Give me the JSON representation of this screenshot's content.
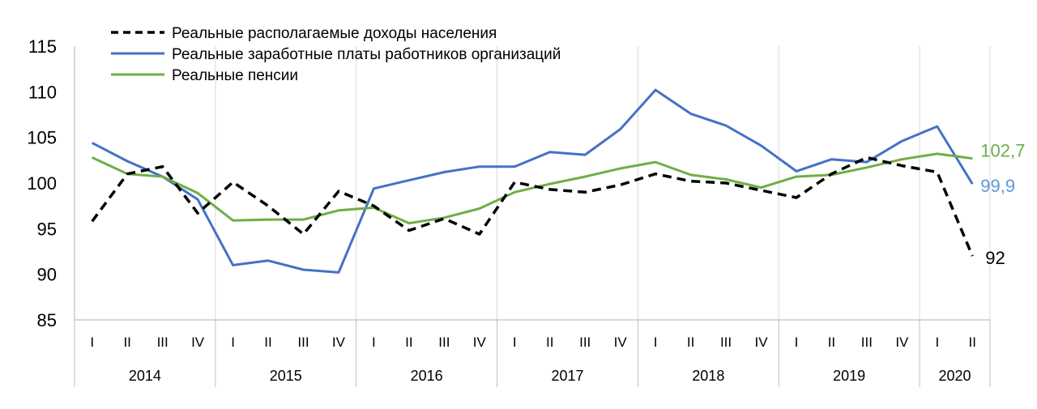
{
  "chart_data": {
    "type": "line",
    "title": "",
    "xlabel": "",
    "ylabel": "",
    "ylim": [
      85,
      115
    ],
    "yticks": [
      85,
      90,
      95,
      100,
      105,
      110,
      115
    ],
    "grid": "vertical",
    "legend_position": "top-left",
    "quarters": [
      "I",
      "II",
      "III",
      "IV",
      "I",
      "II",
      "III",
      "IV",
      "I",
      "II",
      "III",
      "IV",
      "I",
      "II",
      "III",
      "IV",
      "I",
      "II",
      "III",
      "IV",
      "I",
      "II",
      "III",
      "IV",
      "I",
      "II"
    ],
    "years": [
      {
        "label": "2014",
        "count": 4
      },
      {
        "label": "2015",
        "count": 4
      },
      {
        "label": "2016",
        "count": 4
      },
      {
        "label": "2017",
        "count": 4
      },
      {
        "label": "2018",
        "count": 4
      },
      {
        "label": "2019",
        "count": 4
      },
      {
        "label": "2020",
        "count": 2
      }
    ],
    "series": [
      {
        "name": "Реальные располагаемые доходы населения",
        "color": "#000000",
        "dash": "dashed",
        "values": [
          95.8,
          101.0,
          101.8,
          96.7,
          100.1,
          97.5,
          94.4,
          99.1,
          97.5,
          94.8,
          96.1,
          94.4,
          100.1,
          99.3,
          99.0,
          99.8,
          101.0,
          100.2,
          100.0,
          99.2,
          98.4,
          101.0,
          102.8,
          101.9,
          101.2,
          92.0
        ],
        "end_label": "92"
      },
      {
        "name": "Реальные заработные платы работников организаций",
        "color": "#4472c4",
        "dash": "solid",
        "values": [
          104.4,
          102.4,
          100.7,
          98.2,
          91.0,
          91.5,
          90.5,
          90.2,
          99.4,
          100.3,
          101.2,
          101.8,
          101.8,
          103.4,
          103.1,
          105.9,
          110.2,
          107.6,
          106.3,
          104.1,
          101.3,
          102.6,
          102.3,
          104.6,
          106.2,
          99.9
        ],
        "end_label": "99,9",
        "end_label_color": "#5b9bd5"
      },
      {
        "name": "Реальные пенсии",
        "color": "#70ad47",
        "dash": "solid",
        "values": [
          102.8,
          101.0,
          100.7,
          98.9,
          95.9,
          96.0,
          96.0,
          97.0,
          97.3,
          95.6,
          96.2,
          97.2,
          99.0,
          99.9,
          100.7,
          101.6,
          102.3,
          100.9,
          100.4,
          99.5,
          100.7,
          100.9,
          101.7,
          102.6,
          103.2,
          102.7
        ],
        "end_label": "102,7",
        "end_label_color": "#70ad47"
      }
    ]
  }
}
